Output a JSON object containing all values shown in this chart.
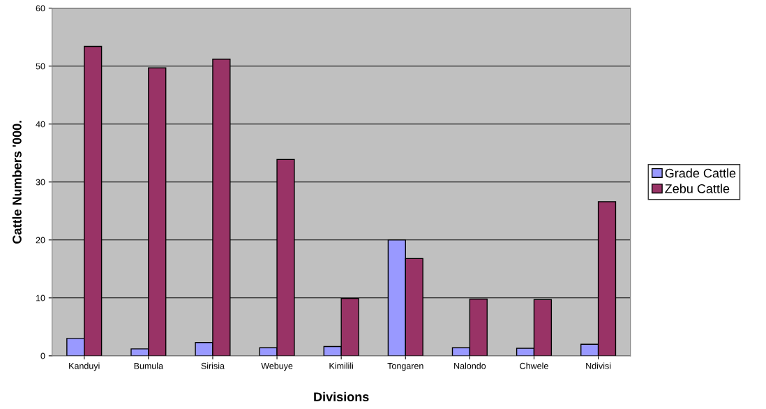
{
  "chart_data": {
    "type": "bar",
    "xlabel": "Divisions",
    "ylabel": "Cattle Numbers '000.",
    "categories": [
      "Kanduyi",
      "Bumula",
      "Sirisia",
      "Webuye",
      "Kimilili",
      "Tongaren",
      "Nalondo",
      "Chwele",
      "Ndivisi"
    ],
    "series": [
      {
        "name": "Grade Cattle",
        "color": "#9999ff",
        "values": [
          3.0,
          1.2,
          2.3,
          1.4,
          1.6,
          20.0,
          1.4,
          1.3,
          2.0
        ]
      },
      {
        "name": "Zebu Cattle",
        "color": "#993366",
        "values": [
          53.4,
          49.7,
          51.2,
          33.9,
          9.9,
          16.8,
          9.8,
          9.7,
          26.6
        ]
      }
    ],
    "ylim": [
      0,
      60
    ],
    "yticks": [
      0,
      10,
      20,
      30,
      40,
      50,
      60
    ],
    "grid": "y",
    "legend": "right"
  }
}
